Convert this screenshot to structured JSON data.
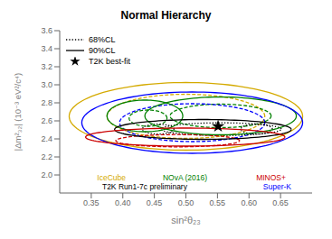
{
  "chart_data": {
    "type": "contour",
    "title": "Normal Hierarchy",
    "x_label": "sin²θ₂₃",
    "y_label": "|Δm²₃₂| (10⁻³ eV²/c⁴)",
    "xlim": [
      0.3,
      0.7
    ],
    "ylim": [
      1.8,
      3.6
    ],
    "xticks": [
      0.35,
      {
        "value": 0.4,
        "label": "0.40"
      },
      0.45,
      {
        "value": 0.5,
        "label": "0.50"
      },
      0.55,
      {
        "value": 0.6,
        "label": "0.60"
      },
      0.65
    ],
    "yticks": [
      {
        "value": 2,
        "label": "2.0"
      },
      2.2,
      2.4,
      2.6,
      2.8,
      {
        "value": 3,
        "label": "3.0"
      },
      3.2,
      3.4,
      3.6
    ],
    "grid": false,
    "legend": "upper left",
    "series": [
      {
        "name": "68%CL",
        "color": "black",
        "line_style": "dotted",
        "contours": [
          {
            "cx": 0.5,
            "cy": 2.65,
            "rx": 0.125,
            "ry": 0.245,
            "color": "#d4aa00",
            "line_style": "dashed"
          },
          {
            "cx": 0.555,
            "cy": 2.655,
            "rx": 0.08,
            "ry": 0.13,
            "color": "green",
            "line_style": "dashed"
          },
          {
            "cx": 0.44,
            "cy": 2.63,
            "rx": 0.03,
            "ry": 0.09,
            "color": "green",
            "line_style": "dashed"
          },
          {
            "cx": 0.51,
            "cy": 2.58,
            "rx": 0.115,
            "ry": 0.21,
            "color": "blue",
            "line_style": "dashed"
          },
          {
            "cx": 0.556,
            "cy": 2.508,
            "rx": 0.095,
            "ry": 0.07,
            "color": "black",
            "line_style": "dotted"
          },
          {
            "cx": 0.456,
            "cy": 2.508,
            "rx": 0.025,
            "ry": 0.055,
            "color": "black",
            "line_style": "dotted"
          },
          {
            "cx": 0.612,
            "cy": 2.508,
            "rx": 0.025,
            "ry": 0.055,
            "color": "black",
            "line_style": "dotted"
          },
          {
            "cx": 0.487,
            "cy": 2.38,
            "rx": 0.098,
            "ry": 0.068,
            "color": "#cc0000",
            "line_style": "dashed"
          }
        ]
      },
      {
        "name": "90%CL",
        "color": "black",
        "line_style": "solid",
        "contours": [
          {
            "cx": 0.5,
            "cy": 2.65,
            "rx": 0.185,
            "ry": 0.375,
            "color": "#d4aa00",
            "line_style": "solid"
          },
          {
            "cx": 0.555,
            "cy": 2.655,
            "rx": 0.12,
            "ry": 0.21,
            "color": "green",
            "line_style": "solid"
          },
          {
            "cx": 0.435,
            "cy": 2.655,
            "rx": 0.06,
            "ry": 0.175,
            "color": "green",
            "line_style": "solid"
          },
          {
            "cx": 0.51,
            "cy": 2.58,
            "rx": 0.175,
            "ry": 0.34,
            "color": "blue",
            "line_style": "solid"
          },
          {
            "cx": 0.527,
            "cy": 2.505,
            "rx": 0.14,
            "ry": 0.11,
            "color": "black",
            "line_style": "solid"
          },
          {
            "cx": 0.499,
            "cy": 2.42,
            "rx": 0.158,
            "ry": 0.1,
            "color": "#cc0000",
            "line_style": "solid"
          }
        ]
      },
      {
        "name": "T2K best-fit",
        "type": "scatter",
        "color": "black",
        "marker": "star",
        "x": [
          0.551
        ],
        "y": [
          2.54
        ]
      }
    ],
    "annotations": [
      {
        "text": "IceCube",
        "x": 0.355,
        "y": 1.97,
        "color": "#d4aa00"
      },
      {
        "text": "NOvA (2016)",
        "x": 0.459,
        "y": 1.97,
        "color": "green"
      },
      {
        "text": "MINOS+",
        "x": 0.607,
        "y": 1.97,
        "color": "#cc0000"
      },
      {
        "text": "T2K Run1-7c preliminary",
        "x": 0.363,
        "y": 1.875,
        "color": "black"
      },
      {
        "text": "Super-K",
        "x": 0.618,
        "y": 1.875,
        "color": "blue"
      }
    ]
  }
}
